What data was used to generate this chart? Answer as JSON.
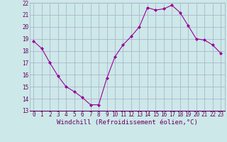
{
  "x": [
    0,
    1,
    2,
    3,
    4,
    5,
    6,
    7,
    8,
    9,
    10,
    11,
    12,
    13,
    14,
    15,
    16,
    17,
    18,
    19,
    20,
    21,
    22,
    23
  ],
  "y": [
    18.8,
    18.2,
    17.0,
    15.9,
    15.0,
    14.6,
    14.1,
    13.5,
    13.5,
    15.7,
    17.5,
    18.5,
    19.2,
    20.0,
    21.6,
    21.4,
    21.5,
    21.8,
    21.2,
    20.1,
    19.0,
    18.9,
    18.5,
    17.8
  ],
  "xlim": [
    -0.5,
    23.5
  ],
  "ylim": [
    13,
    22
  ],
  "yticks": [
    13,
    14,
    15,
    16,
    17,
    18,
    19,
    20,
    21,
    22
  ],
  "xticks": [
    0,
    1,
    2,
    3,
    4,
    5,
    6,
    7,
    8,
    9,
    10,
    11,
    12,
    13,
    14,
    15,
    16,
    17,
    18,
    19,
    20,
    21,
    22,
    23
  ],
  "xlabel": "Windchill (Refroidissement éolien,°C)",
  "line_color": "#990099",
  "marker": "D",
  "marker_size": 2,
  "bg_color": "#cce8e8",
  "grid_color": "#aaaacc",
  "tick_color": "#660066",
  "label_color": "#660066",
  "tick_fontsize": 5.5,
  "xlabel_fontsize": 6.5
}
